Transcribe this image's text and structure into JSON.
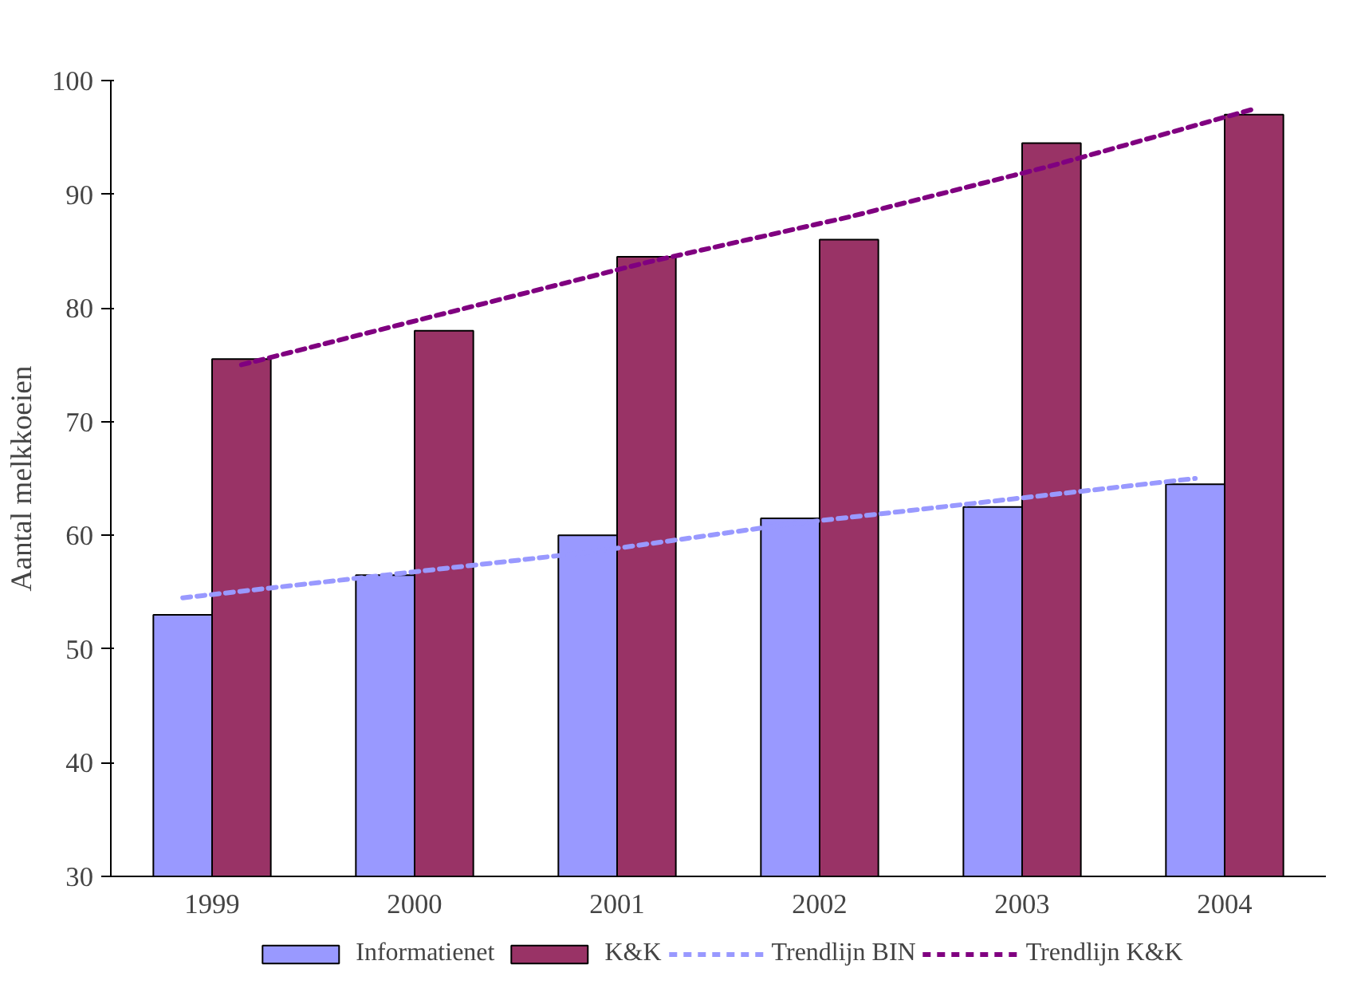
{
  "chart_data": {
    "type": "bar",
    "ylabel": "Aantal melkkoeien",
    "categories": [
      "1999",
      "2000",
      "2001",
      "2002",
      "2003",
      "2004"
    ],
    "series": [
      {
        "name": "Informatienet",
        "color": "#9999ff",
        "values": [
          53,
          56.5,
          60,
          61.5,
          62.5,
          64.5
        ]
      },
      {
        "name": "K&K",
        "color": "#993366",
        "values": [
          75.5,
          78,
          84.5,
          86,
          94.5,
          97
        ]
      },
      {
        "name": "Trendlijn BIN",
        "type": "line",
        "line_style": "dashed",
        "color": "#9999ff",
        "values": [
          54.5,
          56.5,
          58.5,
          61,
          63,
          65
        ]
      },
      {
        "name": "Trendlijn K&K",
        "type": "line",
        "line_style": "dashed",
        "color": "#800080",
        "values": [
          75,
          79.5,
          84,
          88,
          92.5,
          97.5
        ]
      }
    ],
    "ylim": [
      30,
      100
    ],
    "yticks": [
      30,
      40,
      50,
      60,
      70,
      80,
      90,
      100
    ],
    "grid": false,
    "legend": "bottom"
  }
}
